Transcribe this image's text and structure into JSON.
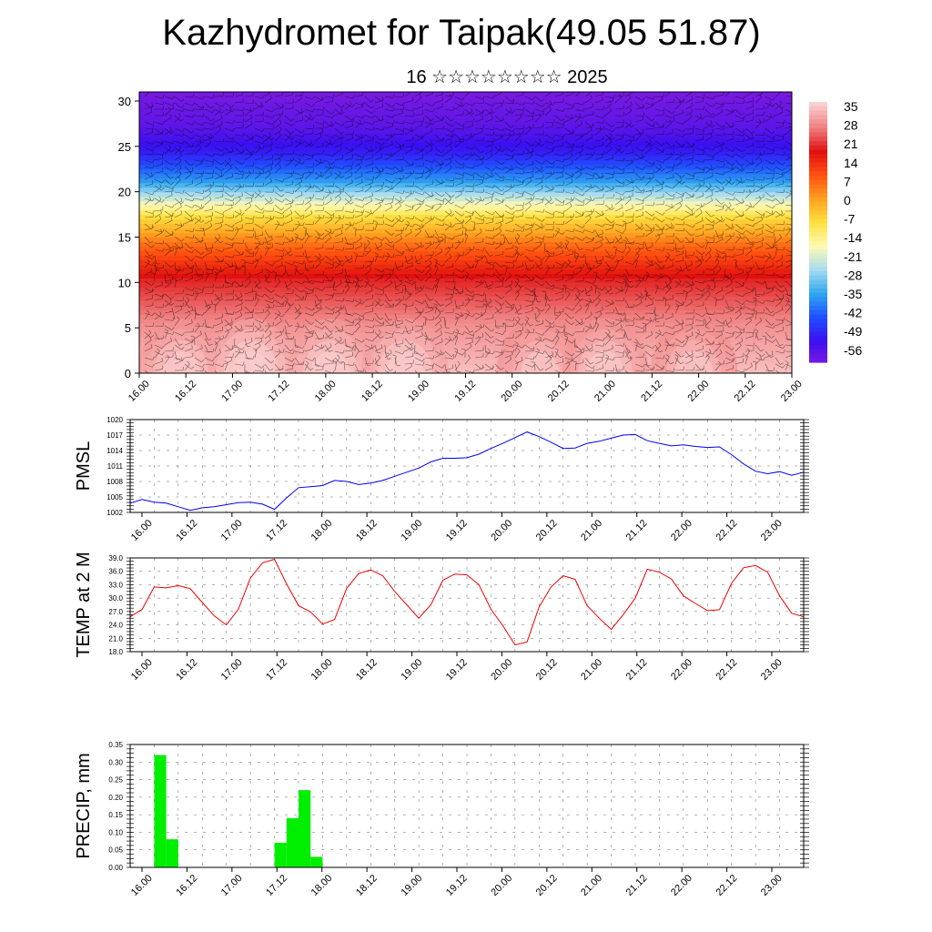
{
  "title": "Kazhydromet for Taipak(49.05 51.87)",
  "subtitle": "16 ☆☆☆☆☆☆☆☆ 2025",
  "time_ticks": [
    "16.00",
    "16.12",
    "17.00",
    "17.12",
    "18.00",
    "18.12",
    "19.00",
    "19.12",
    "20.00",
    "20.12",
    "21.00",
    "21.12",
    "22.00",
    "22.12",
    "23.00"
  ],
  "chart_data": [
    {
      "type": "heatmap",
      "title": "",
      "xlabel": "",
      "ylabel": "",
      "y_ticks": [
        "0",
        "5",
        "10",
        "15",
        "20",
        "25",
        "30"
      ],
      "ylim": [
        0,
        31
      ],
      "colorbar_labels": [
        "35",
        "28",
        "21",
        "14",
        "7",
        "0",
        "-7",
        "-14",
        "-21",
        "-28",
        "-35",
        "-42",
        "-49",
        "-56"
      ],
      "colorbar_range": [
        -60,
        37
      ],
      "colorbar_stops": [
        "#7a1ae0",
        "#3a10f0",
        "#2050ff",
        "#30a8f0",
        "#a8dcf0",
        "#fffab0",
        "#ffe040",
        "#ffa020",
        "#ff5010",
        "#e01010",
        "#f08080",
        "#fbd0d0"
      ],
      "overlay": "wind barbs",
      "levels_temp": [
        {
          "level": 0,
          "temp": 35
        },
        {
          "level": 5,
          "temp": 30
        },
        {
          "level": 10,
          "temp": 21
        },
        {
          "level": 14,
          "temp": 7
        },
        {
          "level": 17,
          "temp": -7
        },
        {
          "level": 19,
          "temp": -21
        },
        {
          "level": 21,
          "temp": -35
        },
        {
          "level": 24,
          "temp": -49
        },
        {
          "level": 27,
          "temp": -56
        },
        {
          "level": 31,
          "temp": -60
        }
      ],
      "warm_cells": [
        {
          "x": 0.45,
          "temp": 38
        },
        {
          "x": 1.2,
          "temp": 40
        },
        {
          "x": 2.05,
          "temp": 39
        },
        {
          "x": 2.85,
          "temp": 39
        },
        {
          "x": 4.3,
          "temp": 37
        },
        {
          "x": 5.0,
          "temp": 38
        },
        {
          "x": 5.95,
          "temp": 37
        }
      ]
    },
    {
      "type": "line",
      "title": "",
      "xlabel": "",
      "ylabel": "PMSL",
      "y_ticks": [
        "1020",
        "1017",
        "1014",
        "1011",
        "1008",
        "1005",
        "1002"
      ],
      "ylim": [
        1002,
        1020
      ],
      "color": "#0000ee",
      "x": [
        0,
        0.125,
        0.25,
        0.375,
        0.5,
        0.625,
        0.75,
        0.875,
        1,
        1.125,
        1.25,
        1.375,
        1.5,
        1.625,
        1.75,
        1.875,
        2,
        2.125,
        2.25,
        2.375,
        2.5,
        2.625,
        2.75,
        2.875,
        3,
        3.125,
        3.25,
        3.375,
        3.5,
        3.625,
        3.75,
        3.875,
        4,
        4.125,
        4.25,
        4.375,
        4.5,
        4.625,
        4.75,
        4.875,
        5,
        5.125,
        5.25,
        5.375,
        5.5,
        5.625,
        5.75,
        5.875,
        6,
        6.125,
        6.25,
        6.375,
        6.5,
        6.625,
        6.75,
        6.875,
        7
      ],
      "values": [
        1003.8,
        1004.5,
        1004,
        1003.8,
        1003.1,
        1002.4,
        1002.9,
        1003.1,
        1003.5,
        1003.9,
        1004,
        1003.6,
        1002.6,
        1004.8,
        1006.8,
        1007,
        1007.2,
        1008.2,
        1008,
        1007.4,
        1007.7,
        1008.2,
        1009,
        1009.8,
        1010.6,
        1011.8,
        1012.5,
        1012.5,
        1012.6,
        1013.3,
        1014.4,
        1015.4,
        1016.5,
        1017.6,
        1016.7,
        1015.6,
        1014.4,
        1014.5,
        1015.4,
        1015.8,
        1016.4,
        1017,
        1017.1,
        1015.9,
        1015.4,
        1014.9,
        1015.1,
        1014.8,
        1014.6,
        1014.7,
        1013.2,
        1011.4,
        1010,
        1009.5,
        1009.9,
        1009.2,
        1009.8
      ]
    },
    {
      "type": "line",
      "title": "",
      "xlabel": "",
      "ylabel": "TEMP at 2 M",
      "y_ticks": [
        "39.0",
        "36.0",
        "33.0",
        "30.0",
        "27.0",
        "24.0",
        "21.0",
        "18.0"
      ],
      "ylim": [
        18,
        39
      ],
      "color": "#ee0000",
      "x": [
        0,
        0.125,
        0.25,
        0.375,
        0.5,
        0.625,
        0.75,
        0.875,
        1,
        1.125,
        1.25,
        1.375,
        1.5,
        1.625,
        1.75,
        1.875,
        2,
        2.125,
        2.25,
        2.375,
        2.5,
        2.625,
        2.75,
        2.875,
        3,
        3.125,
        3.25,
        3.375,
        3.5,
        3.625,
        3.75,
        3.875,
        4,
        4.125,
        4.25,
        4.375,
        4.5,
        4.625,
        4.75,
        4.875,
        5,
        5.125,
        5.25,
        5.375,
        5.5,
        5.625,
        5.75,
        5.875,
        6,
        6.125,
        6.25,
        6.375,
        6.5,
        6.625,
        6.75,
        6.875,
        7
      ],
      "values": [
        25.8,
        27.5,
        32.5,
        32.3,
        32.8,
        32.1,
        29,
        26,
        24,
        27.5,
        34.5,
        37.9,
        38.7,
        33.2,
        28.3,
        26.9,
        24.2,
        25.2,
        32.2,
        35.5,
        36.3,
        35,
        31.5,
        28.5,
        25.5,
        28.5,
        34,
        35.4,
        35.2,
        33,
        27.5,
        23.8,
        19.5,
        20.2,
        28,
        32.5,
        35,
        34.2,
        28.3,
        25.5,
        23,
        26.3,
        30,
        36.5,
        35.8,
        34.3,
        30.5,
        28.8,
        27.2,
        27.4,
        33.3,
        36.8,
        37.3,
        35.8,
        30.5,
        26.6,
        25.8
      ]
    },
    {
      "type": "bar",
      "title": "",
      "xlabel": "",
      "ylabel": "PRECIP, mm",
      "y_ticks": [
        "0.35",
        "0.30",
        "0.25",
        "0.20",
        "0.15",
        "0.10",
        "0.05",
        "0.00"
      ],
      "ylim": [
        0,
        0.35
      ],
      "color": "#00ee00",
      "bar_width": 0.125,
      "x": [
        0.25,
        0.375,
        1.5,
        1.625,
        1.75,
        1.875
      ],
      "values": [
        0.32,
        0.08,
        0.07,
        0.14,
        0.22,
        0.03
      ]
    }
  ]
}
